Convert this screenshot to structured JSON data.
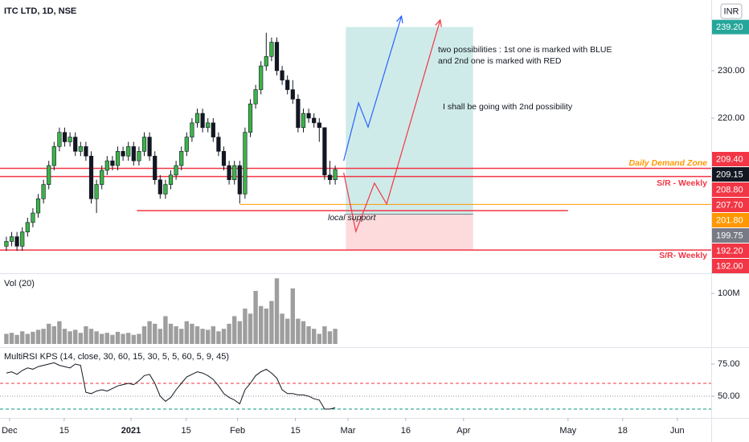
{
  "chart_data": {
    "type": "candlestick",
    "title": "ITC LTD, 1D, NSE",
    "currency": "INR",
    "up_color": "#3cb34a",
    "down_color": "#131722",
    "xlim": [
      -1.2,
      132.9
    ],
    "ylim": [
      187.3,
      244.9
    ],
    "yticks": [
      {
        "value": 220,
        "label": "220.00"
      },
      {
        "value": 230,
        "label": "230.00"
      }
    ],
    "xticks": [
      {
        "value": 0.6,
        "label": "Dec"
      },
      {
        "value": 10.9,
        "label": "15"
      },
      {
        "value": 23.5,
        "label": "2021"
      },
      {
        "value": 33.9,
        "label": "15"
      },
      {
        "value": 43.6,
        "label": "Feb"
      },
      {
        "value": 54.5,
        "label": "15"
      },
      {
        "value": 64.4,
        "label": "Mar"
      },
      {
        "value": 75.3,
        "label": "16"
      },
      {
        "value": 86.2,
        "label": "Apr"
      },
      {
        "value": 105.9,
        "label": "May"
      },
      {
        "value": 116.2,
        "label": "18"
      },
      {
        "value": 126.5,
        "label": "Jun"
      }
    ],
    "candles": [
      [
        193,
        195,
        192,
        194
      ],
      [
        194,
        196,
        193,
        195
      ],
      [
        195,
        196,
        192,
        193
      ],
      [
        193,
        197,
        192,
        196
      ],
      [
        196,
        199,
        195,
        198
      ],
      [
        198,
        201,
        197,
        200
      ],
      [
        200,
        204,
        199,
        203
      ],
      [
        203,
        207,
        202,
        206
      ],
      [
        206,
        211,
        205,
        210
      ],
      [
        210,
        215,
        209,
        214
      ],
      [
        214,
        218,
        213,
        217
      ],
      [
        217,
        218,
        214,
        215
      ],
      [
        215,
        217,
        214,
        216
      ],
      [
        216,
        217,
        212,
        213
      ],
      [
        213,
        215,
        212,
        214
      ],
      [
        214,
        215,
        211,
        212
      ],
      [
        212,
        213,
        202,
        203
      ],
      [
        203,
        207,
        200,
        206
      ],
      [
        206,
        210,
        205,
        209
      ],
      [
        209,
        212,
        208,
        211
      ],
      [
        211,
        212,
        209,
        210
      ],
      [
        210,
        214,
        209,
        213
      ],
      [
        213,
        214,
        211,
        212
      ],
      [
        212,
        215,
        211,
        214
      ],
      [
        214,
        215,
        210,
        211
      ],
      [
        211,
        214,
        210,
        213
      ],
      [
        213,
        217,
        212,
        216
      ],
      [
        216,
        217,
        211,
        212
      ],
      [
        212,
        213,
        206,
        207
      ],
      [
        207,
        208,
        203,
        204
      ],
      [
        204,
        207,
        203,
        206
      ],
      [
        206,
        209,
        205,
        208
      ],
      [
        208,
        211,
        207,
        210
      ],
      [
        210,
        214,
        209,
        213
      ],
      [
        213,
        217,
        212,
        216
      ],
      [
        216,
        220,
        215,
        219
      ],
      [
        219,
        222,
        218,
        221
      ],
      [
        221,
        222,
        217,
        218
      ],
      [
        218,
        220,
        217,
        219
      ],
      [
        219,
        220,
        215,
        216
      ],
      [
        216,
        217,
        212,
        213
      ],
      [
        213,
        214,
        209,
        210
      ],
      [
        210,
        211,
        206,
        207
      ],
      [
        207,
        211,
        206,
        210
      ],
      [
        210,
        211,
        202,
        204
      ],
      [
        204,
        218,
        203,
        217
      ],
      [
        217,
        224,
        216,
        223
      ],
      [
        223,
        227,
        222,
        226
      ],
      [
        226,
        232,
        225,
        231
      ],
      [
        231,
        238,
        230,
        233
      ],
      [
        233,
        237,
        232,
        236
      ],
      [
        236,
        237,
        229,
        230
      ],
      [
        230,
        231,
        227,
        228
      ],
      [
        228,
        229,
        225,
        226
      ],
      [
        226,
        228,
        223,
        224
      ],
      [
        224,
        225,
        217,
        218
      ],
      [
        218,
        222,
        217,
        221
      ],
      [
        221,
        222,
        219,
        220
      ],
      [
        220,
        221,
        218,
        219
      ],
      [
        219,
        220,
        215,
        218
      ],
      [
        218,
        218,
        207,
        208
      ],
      [
        208,
        211,
        206,
        207
      ],
      [
        207,
        210,
        206,
        209.15
      ]
    ],
    "levels": [
      {
        "value": 239.2,
        "label": "239.20",
        "color": "#26a69a"
      },
      {
        "value": 209.4,
        "label": "209.40",
        "color": "#f23645",
        "line_from": -1.2
      },
      {
        "value": 209.15,
        "label": "209.15",
        "color": "#131722"
      },
      {
        "value": 208.8,
        "label": "208.80",
        "color": "#f23645"
      },
      {
        "value": 207.7,
        "label": "207.70",
        "color": "#f23645",
        "line_from": -1.2
      },
      {
        "value": 201.8,
        "label": "201.80",
        "color": "#ff9800",
        "line_from": 44
      },
      {
        "value": 199.75,
        "label": "199.75",
        "color": "#787b86"
      },
      {
        "value": 192.2,
        "label": "192.20",
        "color": "#f23645",
        "line_from": -1.2
      },
      {
        "value": 192,
        "label": "192.00",
        "color": "#f23645"
      }
    ],
    "support_line": {
      "value": 200.5,
      "from": 24.6,
      "to": 105.9,
      "color": "#f23645"
    },
    "position": {
      "start": 64,
      "end": 88,
      "entry": 199.75,
      "target": 239.2,
      "stop": 192.2
    },
    "paths": [
      {
        "color": "#2962ff",
        "points": [
          [
            63.6,
            211.0
          ],
          [
            66.4,
            223.2
          ],
          [
            68.2,
            218.1
          ],
          [
            74.5,
            241.5
          ]
        ]
      },
      {
        "color": "#f23645",
        "points": [
          [
            63.6,
            208.5
          ],
          [
            65.9,
            196.1
          ],
          [
            69.4,
            206.3
          ],
          [
            71.7,
            201.9
          ],
          [
            81.8,
            240.7
          ]
        ]
      }
    ],
    "annotations": [
      {
        "text": "two possibilities : 1st one is marked with BLUE",
        "color": "#131722"
      },
      {
        "text": "and 2nd one is marked with RED",
        "color": "#131722"
      },
      {
        "text": "I shall be going with 2nd possibility",
        "color": "#131722"
      },
      {
        "text": "Daily Demand Zone",
        "color": "#ff9800"
      },
      {
        "text": "S/R - Weekly",
        "color": "#f23645"
      },
      {
        "text": "local support",
        "color": "#131722"
      },
      {
        "text": "S/R- Weekly",
        "color": "#f23645"
      }
    ],
    "volume": {
      "title": "Vol (20)",
      "color": "#9e9e9e",
      "ylim": [
        0,
        132000000
      ],
      "yticks": [
        {
          "value": 100000000,
          "label": "100M"
        }
      ],
      "values": [
        20000000,
        22000000,
        18000000,
        25000000,
        20000000,
        24000000,
        28000000,
        30000000,
        40000000,
        35000000,
        45000000,
        30000000,
        25000000,
        28000000,
        22000000,
        35000000,
        30000000,
        25000000,
        20000000,
        22000000,
        18000000,
        24000000,
        20000000,
        22000000,
        18000000,
        20000000,
        35000000,
        45000000,
        40000000,
        30000000,
        55000000,
        40000000,
        35000000,
        30000000,
        45000000,
        40000000,
        35000000,
        30000000,
        28000000,
        35000000,
        25000000,
        30000000,
        40000000,
        55000000,
        45000000,
        70000000,
        60000000,
        105000000,
        75000000,
        70000000,
        85000000,
        130000000,
        60000000,
        50000000,
        110000000,
        50000000,
        45000000,
        35000000,
        30000000,
        20000000,
        35000000,
        25000000,
        30000000
      ]
    },
    "rsi": {
      "title": "MultiRSI KPS (14, close, 30, 60, 15, 30, 5, 5, 60, 5, 9, 45)",
      "color": "#131722",
      "ylim": [
        33.1,
        86.9
      ],
      "yticks": [
        {
          "value": 75,
          "label": "75.00"
        },
        {
          "value": 50,
          "label": "50.00"
        }
      ],
      "levels": [
        {
          "value": 60,
          "color": "#f23645"
        },
        {
          "value": 50,
          "color": "#9598a1"
        },
        {
          "value": 40,
          "color": "#089981"
        }
      ],
      "values": [
        68,
        69,
        67,
        70,
        72,
        71,
        73,
        74,
        75,
        76,
        74,
        73,
        72,
        75,
        74,
        53,
        52,
        54,
        55,
        54,
        56,
        58,
        59,
        60,
        59,
        62,
        66,
        67,
        60,
        50,
        46,
        49,
        55,
        60,
        65,
        67,
        69,
        68,
        66,
        63,
        58,
        52,
        49,
        47,
        44,
        55,
        60,
        66,
        69,
        71,
        68,
        64,
        55,
        52,
        52,
        51,
        51,
        50,
        48,
        47,
        40,
        40,
        41
      ]
    }
  }
}
